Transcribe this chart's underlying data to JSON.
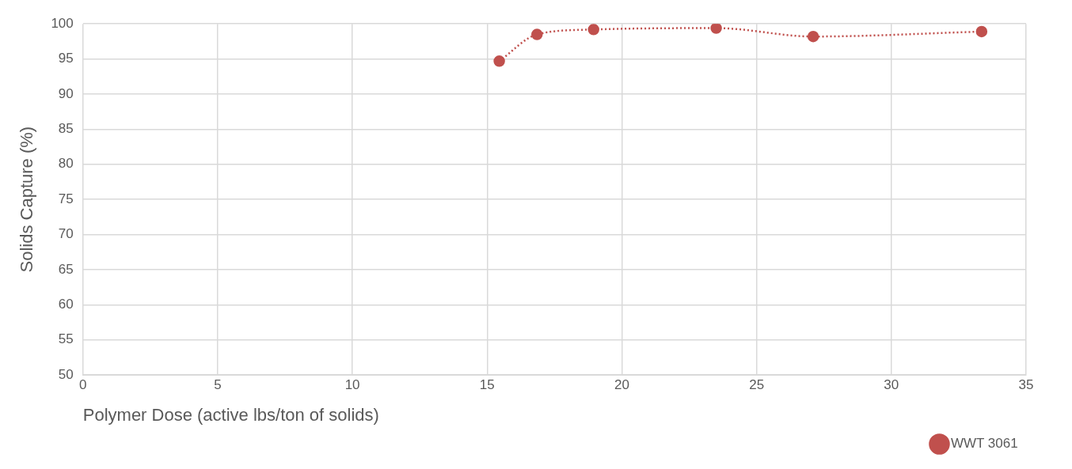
{
  "chart_data": {
    "type": "line",
    "xlabel": "Polymer Dose (active lbs/ton of solids)",
    "ylabel": "Solids Capture (%)",
    "x": [
      15.45,
      16.85,
      18.95,
      23.5,
      27.1,
      33.35
    ],
    "series": [
      {
        "name": "WWT 3061",
        "color": "#c0504d",
        "values": [
          94.7,
          98.5,
          99.2,
          99.4,
          98.2,
          98.9
        ]
      }
    ],
    "xlim": [
      0,
      35
    ],
    "xticks": [
      0,
      5,
      10,
      15,
      20,
      25,
      30,
      35
    ],
    "ylim": [
      50,
      100
    ],
    "yticks": [
      50,
      55,
      60,
      65,
      70,
      75,
      80,
      85,
      90,
      95,
      100
    ],
    "grid": true,
    "legend": "bottom right",
    "marker": "circle",
    "line_style": "dotted"
  }
}
